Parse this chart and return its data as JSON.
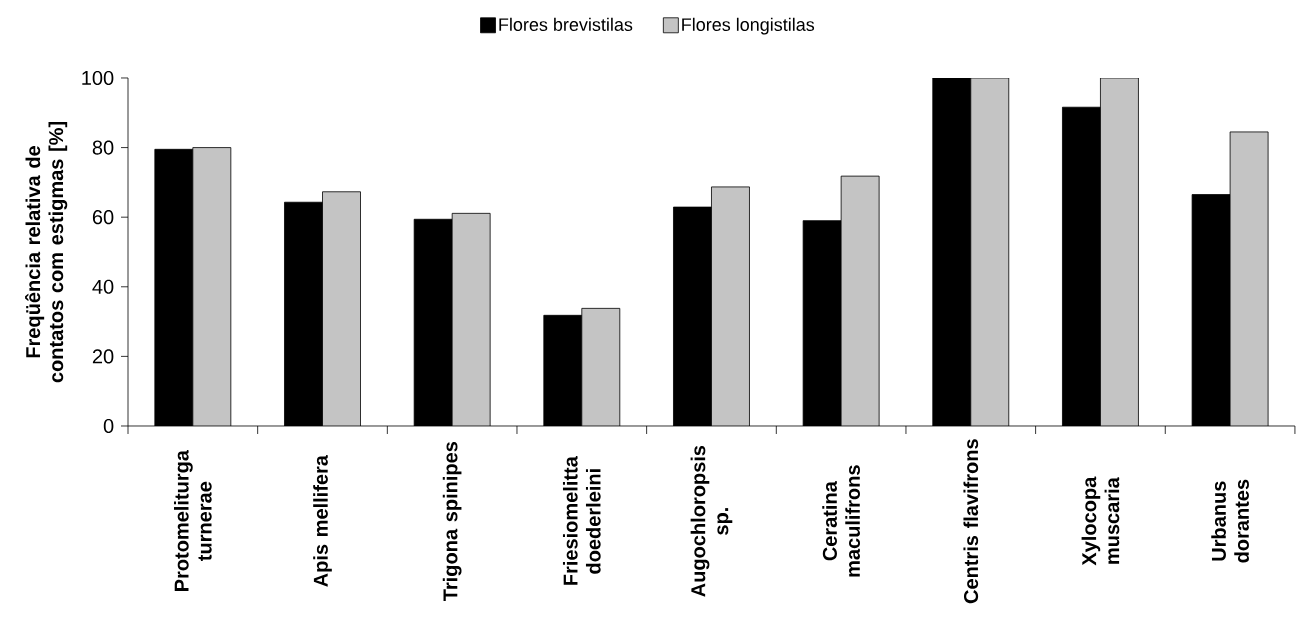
{
  "chart_data": {
    "type": "bar",
    "ylabel": "Freqüência relativa de contatos com estigmas [%]",
    "categories": [
      "Protomeliturga turnerae",
      "Apis mellifera",
      "Trigona spinipes",
      "Friesiomelitta doederleini",
      "Augochloropsis sp.",
      "Ceratina maculifrons",
      "Centris flavifrons",
      "Xylocopa muscaria",
      "Urbanus dorantes"
    ],
    "series": [
      {
        "name": "Flores brevistilas",
        "color": "#000000",
        "values": [
          79.5,
          64.3,
          59.4,
          31.8,
          62.9,
          59.0,
          100,
          91.6,
          66.5
        ]
      },
      {
        "name": "Flores longistilas",
        "color": "#c4c4c4",
        "values": [
          80,
          67.3,
          61.1,
          33.8,
          68.7,
          71.8,
          100,
          100,
          84.5
        ]
      }
    ],
    "ylim": [
      0,
      100
    ],
    "yticks": [
      0,
      20,
      40,
      60,
      80,
      100
    ],
    "grid": false,
    "legend": "top"
  }
}
